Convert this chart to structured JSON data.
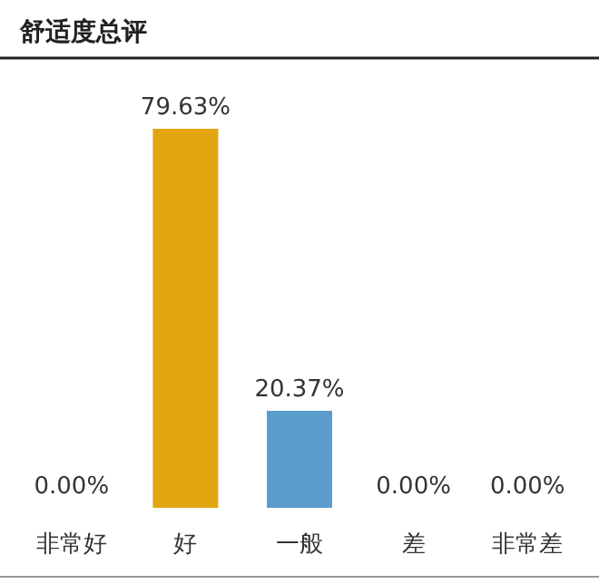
{
  "chart_data": {
    "type": "bar",
    "title": "舒适度总评",
    "categories": [
      "非常好",
      "好",
      "一般",
      "差",
      "非常差"
    ],
    "values": [
      0,
      79.63,
      20.37,
      0,
      0
    ],
    "colors": [
      "#e3a612",
      "#e3a612",
      "#5b9cce",
      "#5b9cce",
      "#5b9cce"
    ],
    "value_labels": [
      "0.00%",
      "79.63%",
      "20.37%",
      "0.00%",
      "0.00%"
    ]
  }
}
